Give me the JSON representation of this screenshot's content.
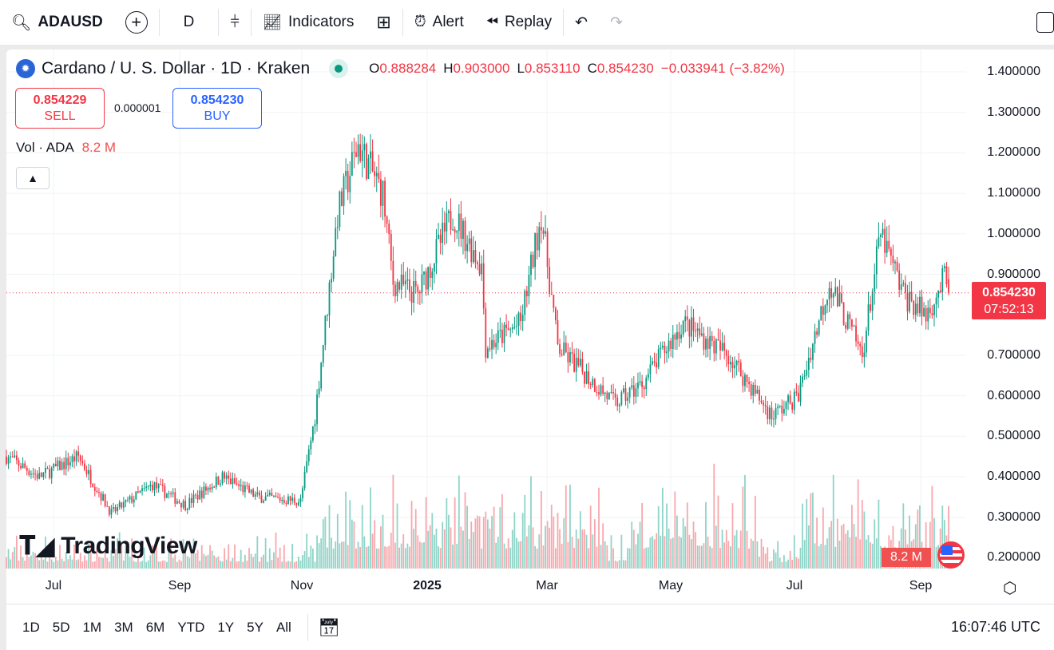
{
  "toolbar": {
    "symbol": "ADAUSD",
    "interval": "D",
    "indicators": "Indicators",
    "alert": "Alert",
    "replay": "Replay"
  },
  "legend": {
    "title": "Cardano / U. S. Dollar · 1D · Kraken",
    "o_label": "O",
    "o": "0.888284",
    "h_label": "H",
    "h": "0.903000",
    "l_label": "L",
    "l": "0.853110",
    "c_label": "C",
    "c": "0.854230",
    "change": "−0.033941 (−3.82%)"
  },
  "trade": {
    "sell_price": "0.854229",
    "sell_label": "SELL",
    "spread": "0.000001",
    "buy_price": "0.854230",
    "buy_label": "BUY"
  },
  "volume": {
    "label": "Vol · ADA",
    "value": "8.2 M"
  },
  "price_axis": [
    "1.400000",
    "1.300000",
    "1.200000",
    "1.100000",
    "1.000000",
    "0.900000",
    "0.700000",
    "0.600000",
    "0.500000",
    "0.400000",
    "0.300000",
    "0.200000"
  ],
  "price_tag": {
    "price": "0.854230",
    "countdown": "07:52:13"
  },
  "time_axis": [
    "Jul",
    "Sep",
    "Nov",
    "2025",
    "Mar",
    "May",
    "Jul",
    "Sep"
  ],
  "ranges": [
    "1D",
    "5D",
    "1M",
    "3M",
    "6M",
    "YTD",
    "1Y",
    "5Y",
    "All"
  ],
  "clock": "16:07:46 UTC",
  "brand": "TradingView",
  "colors": {
    "up": "#089981",
    "down": "#f23645",
    "buy": "#2962ff"
  },
  "chart_data": {
    "type": "candlestick",
    "note": "approximate daily close path keypoints (date, close)",
    "keypoints": [
      [
        "2024-06-15",
        0.45
      ],
      [
        "2024-07-01",
        0.4
      ],
      [
        "2024-07-20",
        0.45
      ],
      [
        "2024-08-05",
        0.31
      ],
      [
        "2024-08-25",
        0.38
      ],
      [
        "2024-09-10",
        0.33
      ],
      [
        "2024-09-28",
        0.4
      ],
      [
        "2024-10-15",
        0.35
      ],
      [
        "2024-11-05",
        0.34
      ],
      [
        "2024-11-12",
        0.55
      ],
      [
        "2024-11-23",
        1.05
      ],
      [
        "2024-12-03",
        1.22
      ],
      [
        "2024-12-15",
        1.1
      ],
      [
        "2024-12-20",
        0.88
      ],
      [
        "2025-01-01",
        0.85
      ],
      [
        "2025-01-18",
        1.05
      ],
      [
        "2025-02-01",
        0.92
      ],
      [
        "2025-02-03",
        0.72
      ],
      [
        "2025-02-20",
        0.78
      ],
      [
        "2025-03-02",
        1.05
      ],
      [
        "2025-03-10",
        0.72
      ],
      [
        "2025-04-07",
        0.58
      ],
      [
        "2025-04-20",
        0.63
      ],
      [
        "2025-05-10",
        0.78
      ],
      [
        "2025-06-01",
        0.7
      ],
      [
        "2025-06-22",
        0.55
      ],
      [
        "2025-07-05",
        0.6
      ],
      [
        "2025-07-20",
        0.88
      ],
      [
        "2025-08-05",
        0.7
      ],
      [
        "2025-08-14",
        1.0
      ],
      [
        "2025-08-25",
        0.85
      ],
      [
        "2025-09-05",
        0.8
      ],
      [
        "2025-09-14",
        0.89
      ],
      [
        "2025-09-16",
        0.854
      ]
    ],
    "ylim": [
      0.2,
      1.4
    ]
  }
}
